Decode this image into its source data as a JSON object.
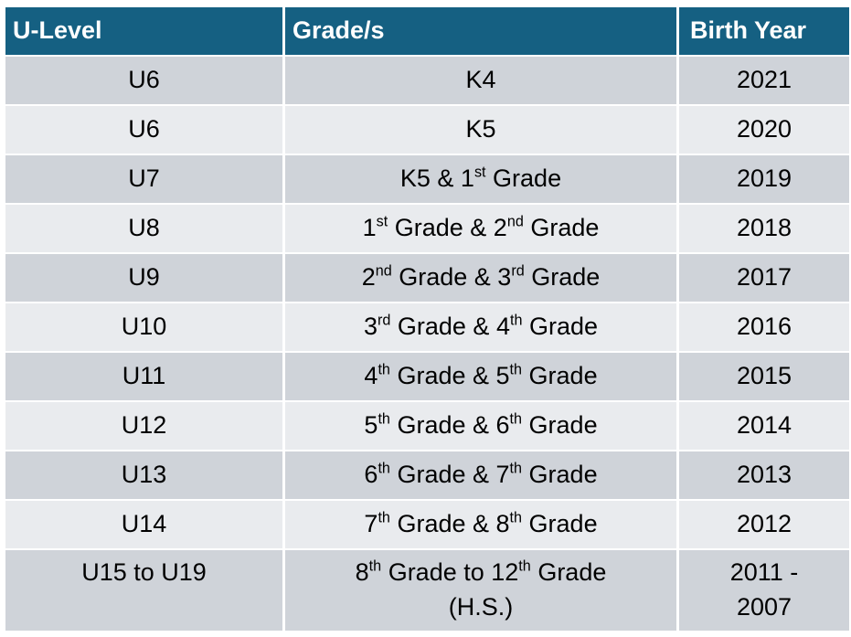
{
  "table": {
    "headers": {
      "u_level": "U-Level",
      "grades": "Grade/s",
      "birth_year": "Birth Year"
    },
    "rows": [
      {
        "u_level": "U6",
        "grade_parts": [
          "K4"
        ],
        "birth_year": "2021"
      },
      {
        "u_level": "U6",
        "grade_parts": [
          "K5"
        ],
        "birth_year": "2020"
      },
      {
        "u_level": "U7",
        "grade_parts": [
          "K5 & 1",
          "st",
          " Grade"
        ],
        "birth_year": "2019"
      },
      {
        "u_level": "U8",
        "grade_parts": [
          "1",
          "st",
          " Grade & 2",
          "nd",
          " Grade"
        ],
        "birth_year": "2018"
      },
      {
        "u_level": "U9",
        "grade_parts": [
          "2",
          "nd",
          " Grade & 3",
          "rd",
          " Grade"
        ],
        "birth_year": "2017"
      },
      {
        "u_level": "U10",
        "grade_parts": [
          "3",
          "rd",
          " Grade & 4",
          "th",
          " Grade"
        ],
        "birth_year": "2016"
      },
      {
        "u_level": "U11",
        "grade_parts": [
          "4",
          "th",
          " Grade & 5",
          "th",
          " Grade"
        ],
        "birth_year": "2015"
      },
      {
        "u_level": "U12",
        "grade_parts": [
          "5",
          "th",
          " Grade & 6",
          "th",
          " Grade"
        ],
        "birth_year": "2014"
      },
      {
        "u_level": "U13",
        "grade_parts": [
          "6",
          "th",
          " Grade & 7",
          "th",
          " Grade"
        ],
        "birth_year": "2013"
      },
      {
        "u_level": "U14",
        "grade_parts": [
          "7",
          "th",
          " Grade & 8",
          "th",
          " Grade"
        ],
        "birth_year": "2012"
      },
      {
        "u_level": "U15 to U19",
        "grade_parts": [
          "8",
          "th",
          " Grade to 12",
          "th",
          " Grade (H.S.)"
        ],
        "birth_year": "2011 - 2007"
      }
    ]
  },
  "colors": {
    "header_bg": "#156082",
    "row_odd_bg": "#CFD3D9",
    "row_even_bg": "#E9EBEE"
  }
}
